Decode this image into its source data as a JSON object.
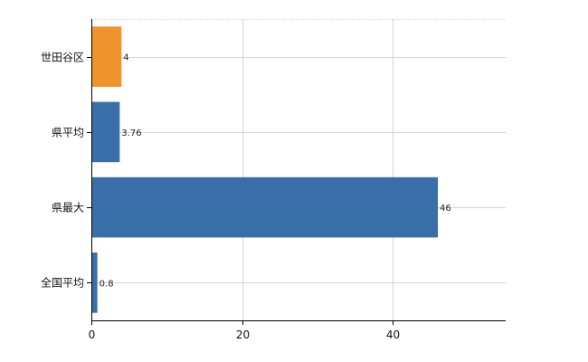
{
  "chart_data": {
    "type": "bar",
    "orientation": "horizontal",
    "categories": [
      "世田谷区",
      "県平均",
      "県最大",
      "全国平均"
    ],
    "values": [
      4,
      3.76,
      46,
      0.8
    ],
    "value_labels": [
      "4",
      "3.76",
      "46",
      "0.8"
    ],
    "bar_colors": [
      "#f0932b",
      "#3a6ea8",
      "#3a6ea8",
      "#3a6ea8"
    ],
    "xlim": [
      0,
      55
    ],
    "xticks": [
      0,
      20,
      40
    ],
    "xtick_labels": [
      "0",
      "20",
      "40"
    ],
    "grid": true,
    "title": "",
    "xlabel": "",
    "ylabel": ""
  },
  "colors": {
    "highlight": "#f0932b",
    "bar": "#3a6ea8",
    "grid": "#d4d4d4",
    "axis": "#000000"
  }
}
